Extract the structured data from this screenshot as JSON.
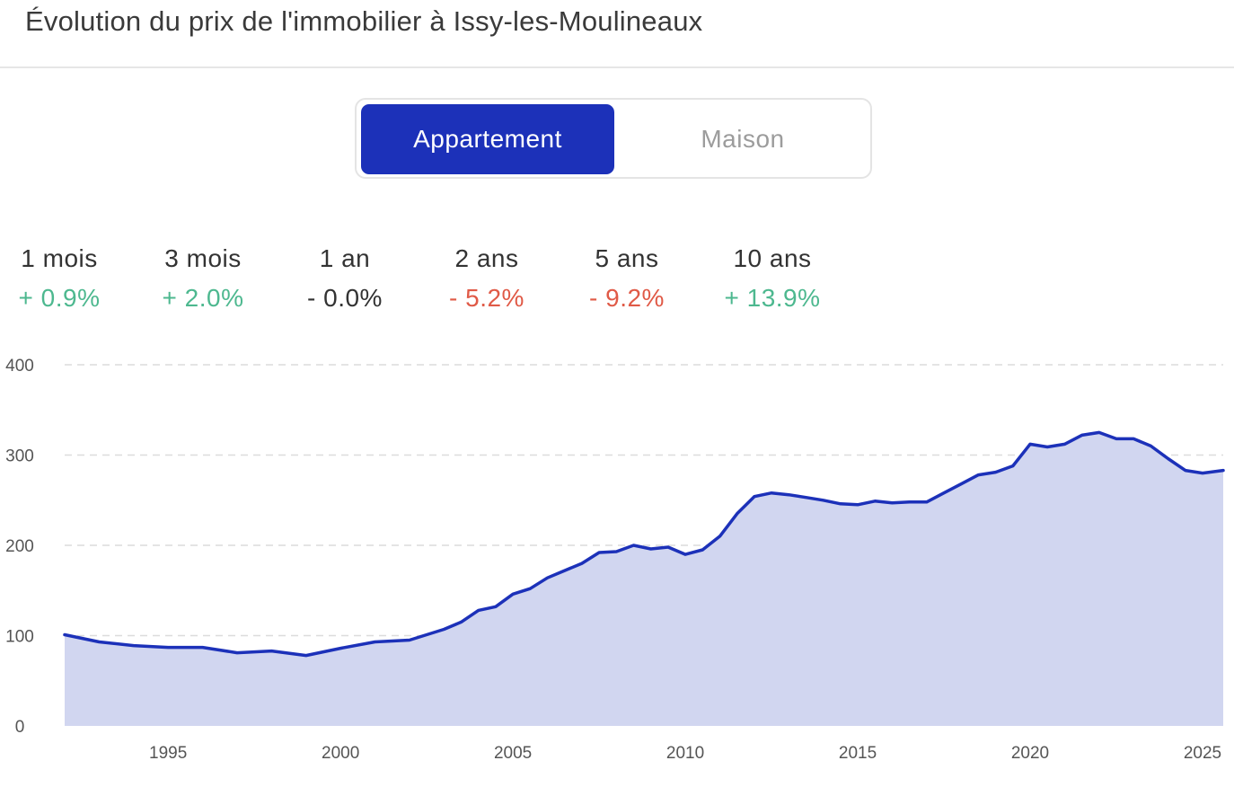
{
  "header": {
    "title": "Évolution du prix de l'immobilier à Issy-les-Moulineaux"
  },
  "toggle": {
    "options": [
      {
        "label": "Appartement",
        "active": true
      },
      {
        "label": "Maison",
        "active": false
      }
    ]
  },
  "stats": [
    {
      "period": "1 mois",
      "change": "+ 0.9%",
      "trend": "up"
    },
    {
      "period": "3 mois",
      "change": "+ 2.0%",
      "trend": "up"
    },
    {
      "period": "1 an",
      "change": "- 0.0%",
      "trend": "flat"
    },
    {
      "period": "2 ans",
      "change": "- 5.2%",
      "trend": "down"
    },
    {
      "period": "5 ans",
      "change": "- 9.2%",
      "trend": "down"
    },
    {
      "period": "10 ans",
      "change": "+ 13.9%",
      "trend": "up"
    }
  ],
  "colors": {
    "accent": "#1c31b9",
    "fill": "#d1d6f0",
    "up": "#4db88f",
    "down": "#e05a47",
    "flat": "#333333",
    "grid": "#dcdcdc"
  },
  "chart_data": {
    "type": "area",
    "title": "",
    "xlabel": "",
    "ylabel": "",
    "xlim": [
      1992,
      2025.6
    ],
    "ylim": [
      0,
      400
    ],
    "y_ticks": [
      "0",
      "100",
      "200",
      "300",
      "400"
    ],
    "x_ticks": [
      "1995",
      "2000",
      "2005",
      "2010",
      "2015",
      "2020",
      "2025"
    ],
    "grid": true,
    "legend": "none",
    "series": [
      {
        "x": [
          1992.0,
          1993.0,
          1994.0,
          1995.0,
          1996.0,
          1997.0,
          1998.0,
          1999.0,
          2000.0,
          2001.0,
          2002.0,
          2003.0,
          2003.5,
          2004.0,
          2004.5,
          2005.0,
          2005.5,
          2006.0,
          2006.5,
          2007.0,
          2007.5,
          2008.0,
          2008.5,
          2009.0,
          2009.5,
          2010.0,
          2010.5,
          2011.0,
          2011.5,
          2012.0,
          2012.5,
          2013.0,
          2013.5,
          2014.0,
          2014.5,
          2015.0,
          2015.5,
          2016.0,
          2016.5,
          2017.0,
          2017.5,
          2018.0,
          2018.5,
          2019.0,
          2019.5,
          2020.0,
          2020.5,
          2021.0,
          2021.5,
          2022.0,
          2022.5,
          2023.0,
          2023.5,
          2024.0,
          2024.5,
          2025.0,
          2025.6
        ],
        "y": [
          101,
          93,
          89,
          87,
          87,
          81,
          83,
          78,
          86,
          93,
          95,
          107,
          115,
          128,
          132,
          146,
          152,
          164,
          172,
          180,
          192,
          193,
          200,
          196,
          198,
          190,
          195,
          210,
          235,
          254,
          258,
          256,
          253,
          250,
          246,
          245,
          249,
          247,
          248,
          248,
          258,
          268,
          278,
          281,
          288,
          312,
          309,
          312,
          322,
          325,
          318,
          318,
          310,
          296,
          283,
          280,
          283
        ]
      }
    ]
  }
}
